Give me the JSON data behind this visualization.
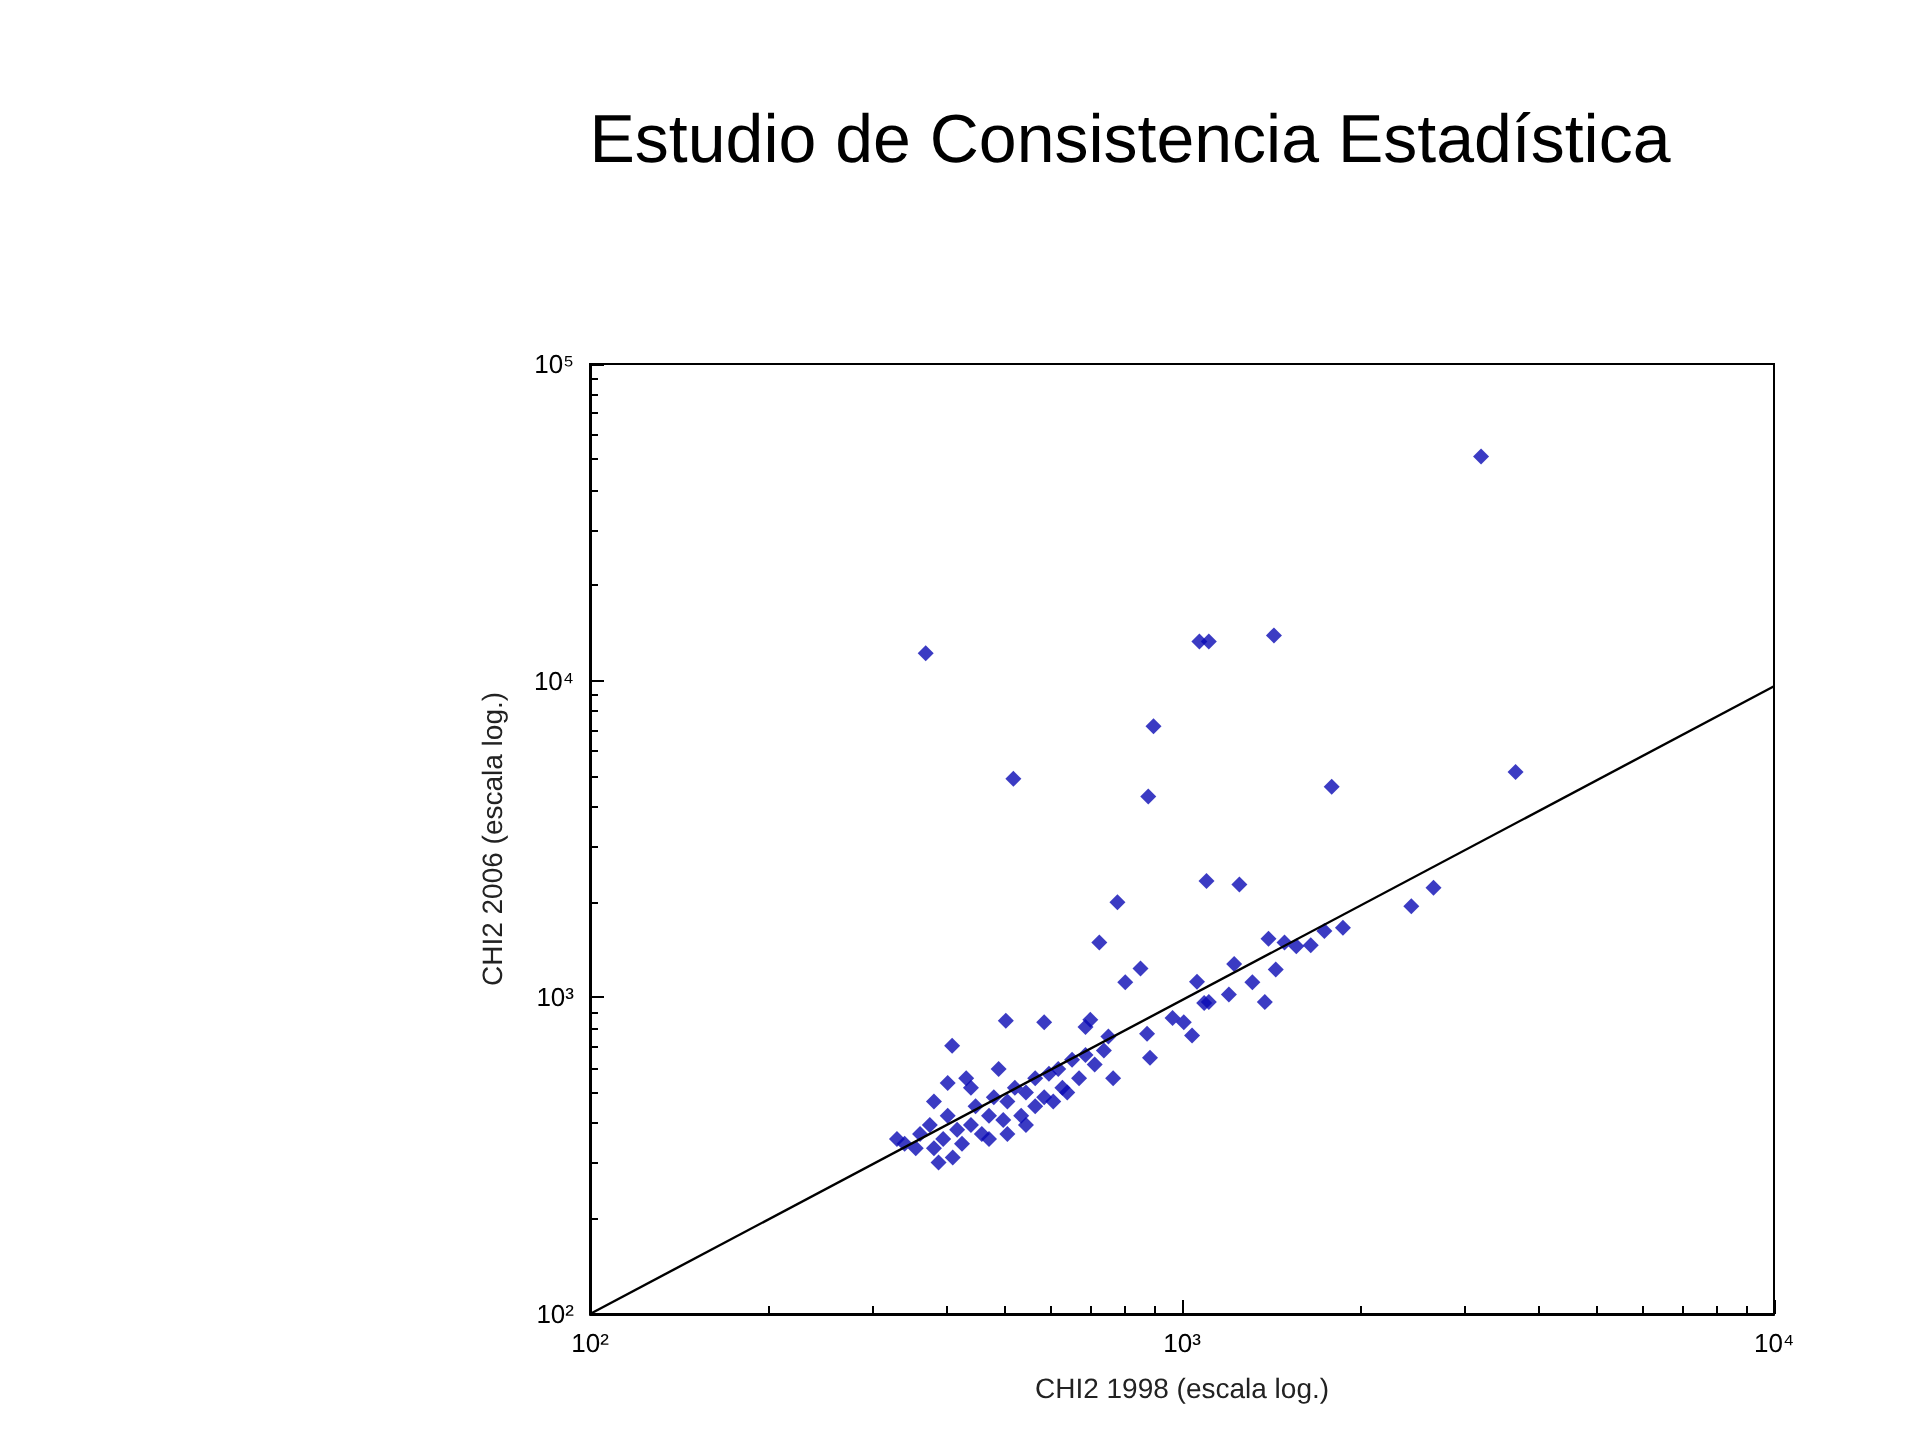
{
  "chart_data": {
    "type": "scatter",
    "title": "Estudio de Consistencia Estadística",
    "xlabel": "CHI2 1998 (escala log.)",
    "ylabel": "CHI2 2006 (escala log.)",
    "log": "xy",
    "grid": false,
    "marker": "diamond",
    "xlim": [
      100,
      10000
    ],
    "ylim": [
      100,
      100000
    ],
    "xticks": [
      {
        "value": 100,
        "label": "10²"
      },
      {
        "value": 1000,
        "label": "10³"
      },
      {
        "value": 10000,
        "label": "10⁴"
      }
    ],
    "yticks": [
      {
        "value": 100,
        "label": "10²"
      },
      {
        "value": 1000,
        "label": "10³"
      },
      {
        "value": 10000,
        "label": "10⁴"
      },
      {
        "value": 100000,
        "label": "10⁵"
      }
    ],
    "series": [
      {
        "color": "#0a0ab4",
        "x": [
          3200,
          369,
          1070,
          1110,
          1430,
          895,
          519,
          877,
          1790,
          3660,
          1100,
          1250,
          778,
          725,
          2440,
          2660,
          1870,
          1740,
          1650,
          1560,
          1490,
          1400,
          1440,
          1225,
          1315,
          1200,
          1380,
          1060,
          1090,
          1110,
          1040,
          964,
          1007,
          851,
          802,
          873,
          883,
          765,
          504,
          409,
          585,
          687,
          700,
          330,
          340,
          355,
          361,
          375,
          381,
          395,
          402,
          417,
          425,
          440,
          448,
          459,
          472,
          481,
          499,
          507,
          522,
          535,
          545,
          565,
          585,
          596,
          618,
          628,
          652,
          670,
          687,
          712,
          738,
          751,
          507,
          472,
          410,
          388,
          440,
          490,
          565,
          606,
          640,
          381,
          402,
          432,
          545
        ],
        "values": [
          51000,
          12200,
          13300,
          13300,
          13900,
          7180,
          4900,
          4310,
          4620,
          5150,
          2330,
          2270,
          1995,
          1490,
          1940,
          2220,
          1660,
          1620,
          1460,
          1450,
          1490,
          1530,
          1225,
          1275,
          1115,
          1020,
          966,
          1120,
          960,
          966,
          757,
          861,
          834,
          1233,
          1115,
          767,
          644,
          555,
          844,
          703,
          834,
          806,
          849,
          357,
          345,
          334,
          370,
          395,
          334,
          357,
          423,
          382,
          345,
          395,
          453,
          370,
          423,
          484,
          410,
          469,
          518,
          423,
          501,
          555,
          484,
          574,
          594,
          518,
          635,
          555,
          657,
          614,
          679,
          752,
          370,
          357,
          312,
          301,
          518,
          594,
          453,
          469,
          501,
          469,
          536,
          555,
          395
        ]
      },
      {
        "type": "line",
        "color": "#000000",
        "marker": "none",
        "x": [
          100,
          10000
        ],
        "values": [
          100,
          9600
        ]
      }
    ]
  }
}
